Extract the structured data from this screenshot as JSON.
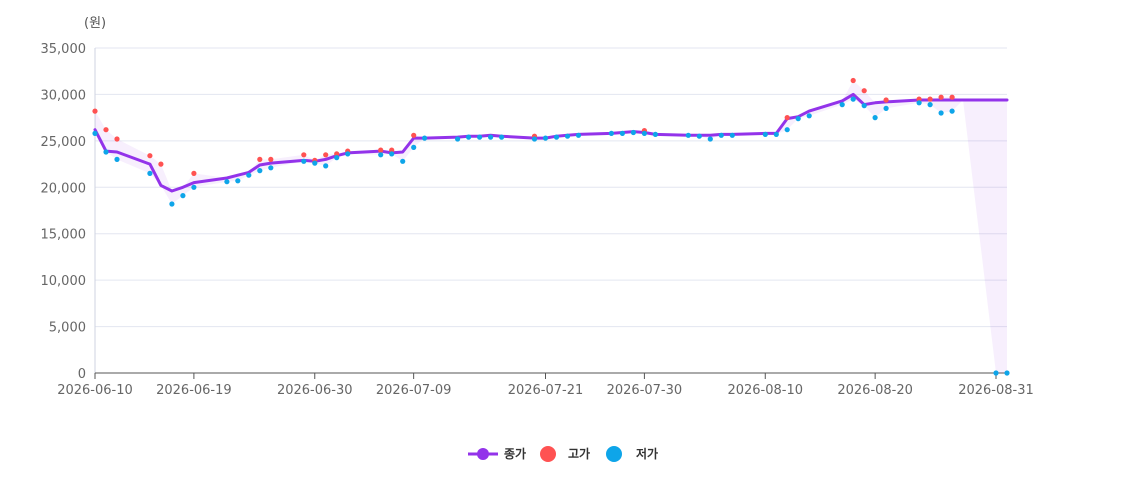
{
  "chart_data": {
    "type": "line",
    "title": "",
    "y_unit_label": "(원)",
    "xlabel": "",
    "ylabel": "",
    "ylim": [
      0,
      35000
    ],
    "yticks": [
      0,
      5000,
      10000,
      15000,
      20000,
      25000,
      30000,
      35000
    ],
    "ytick_labels": [
      "0",
      "5,000",
      "10,000",
      "15,000",
      "20,000",
      "25,000",
      "30,000",
      "35,000"
    ],
    "xlim": [
      "2026-06-10",
      "2026-09-01"
    ],
    "xticks": [
      "2026-06-10",
      "2026-06-19",
      "2026-06-30",
      "2026-07-09",
      "2026-07-21",
      "2026-07-30",
      "2026-08-10",
      "2026-08-20",
      "2026-08-31"
    ],
    "grid": true,
    "legend_position": "bottom-center",
    "dates": [
      "2026-06-10",
      "2026-06-11",
      "2026-06-12",
      "2026-06-15",
      "2026-06-16",
      "2026-06-17",
      "2026-06-18",
      "2026-06-19",
      "2026-06-22",
      "2026-06-23",
      "2026-06-24",
      "2026-06-25",
      "2026-06-26",
      "2026-06-29",
      "2026-06-30",
      "2026-07-01",
      "2026-07-02",
      "2026-07-03",
      "2026-07-06",
      "2026-07-07",
      "2026-07-08",
      "2026-07-09",
      "2026-07-10",
      "2026-07-13",
      "2026-07-14",
      "2026-07-15",
      "2026-07-16",
      "2026-07-17",
      "2026-07-20",
      "2026-07-21",
      "2026-07-22",
      "2026-07-23",
      "2026-07-24",
      "2026-07-27",
      "2026-07-28",
      "2026-07-29",
      "2026-07-30",
      "2026-07-31",
      "2026-08-03",
      "2026-08-04",
      "2026-08-05",
      "2026-08-06",
      "2026-08-07",
      "2026-08-10",
      "2026-08-11",
      "2026-08-12",
      "2026-08-13",
      "2026-08-14",
      "2026-08-17",
      "2026-08-18",
      "2026-08-19",
      "2026-08-20",
      "2026-08-21",
      "2026-08-24",
      "2026-08-25",
      "2026-08-26",
      "2026-08-27",
      "2026-08-28",
      "2026-08-31",
      "2026-09-01"
    ],
    "series": [
      {
        "name": "종가",
        "color": "#9333ea",
        "style": "line",
        "values": [
          26200,
          23900,
          23800,
          22500,
          20200,
          19600,
          20000,
          20500,
          21000,
          21300,
          21600,
          22400,
          22600,
          22900,
          22800,
          23000,
          23400,
          23700,
          23900,
          23700,
          23800,
          25300,
          25300,
          25400,
          25500,
          25500,
          25600,
          25500,
          25300,
          25300,
          25500,
          25600,
          25700,
          25800,
          25900,
          26000,
          25900,
          25700,
          25600,
          25600,
          25600,
          25700,
          25700,
          25800,
          25800,
          27400,
          27600,
          28200,
          29300,
          30000,
          28900,
          29100,
          29200,
          29400,
          29400,
          29400,
          29400,
          29400,
          29400,
          29400
        ]
      },
      {
        "name": "고가",
        "color": "#ff5252",
        "style": "dots",
        "values": [
          28200,
          26200,
          25200,
          23400,
          22500,
          null,
          null,
          21500,
          null,
          null,
          null,
          23000,
          23000,
          23500,
          22900,
          23500,
          23600,
          23900,
          24000,
          24000,
          null,
          25600,
          null,
          null,
          null,
          null,
          null,
          null,
          25500,
          null,
          null,
          null,
          null,
          null,
          null,
          null,
          26100,
          null,
          null,
          null,
          null,
          null,
          null,
          null,
          null,
          27500,
          null,
          null,
          null,
          31500,
          30400,
          null,
          29400,
          29500,
          29500,
          29700,
          29700,
          null,
          null,
          null
        ]
      },
      {
        "name": "저가",
        "color": "#0ea5e9",
        "style": "dots",
        "values": [
          25800,
          23800,
          23000,
          21500,
          null,
          18200,
          19100,
          20000,
          20600,
          20700,
          21300,
          21800,
          22100,
          22800,
          22600,
          22300,
          23200,
          23600,
          23500,
          23600,
          22800,
          24300,
          25300,
          25200,
          25400,
          25400,
          25400,
          25400,
          25200,
          25300,
          25400,
          25500,
          25600,
          25800,
          25800,
          25900,
          25800,
          25700,
          25600,
          25500,
          25200,
          25600,
          25600,
          25700,
          25700,
          26200,
          27400,
          27700,
          28900,
          29500,
          28800,
          27500,
          28500,
          29100,
          28900,
          28000,
          28200,
          null,
          0,
          0
        ]
      }
    ]
  }
}
